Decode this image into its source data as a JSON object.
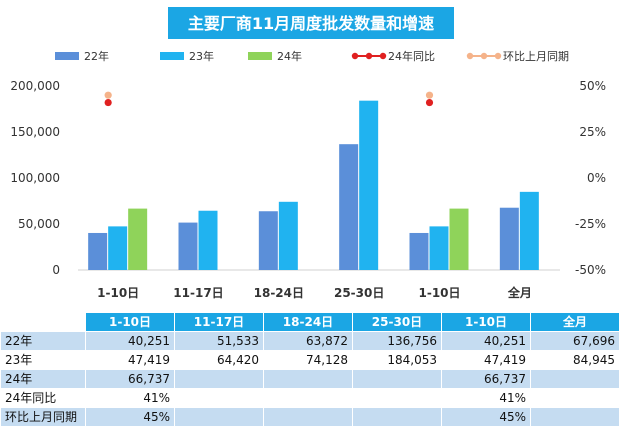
{
  "chart_data": {
    "type": "bar",
    "title": "主要厂商11月周度批发数量和增速",
    "categories": [
      "1-10日",
      "11-17日",
      "18-24日",
      "25-30日",
      "1-10日",
      "全月"
    ],
    "series": [
      {
        "name": "22年",
        "color": "#5b8fd9",
        "values": [
          40251,
          51533,
          63872,
          136756,
          40251,
          67696
        ]
      },
      {
        "name": "23年",
        "color": "#20b3f0",
        "values": [
          47419,
          64420,
          74128,
          184053,
          47419,
          84945
        ]
      },
      {
        "name": "24年",
        "color": "#8fd35a",
        "values": [
          66737,
          null,
          null,
          null,
          66737,
          null
        ]
      },
      {
        "name": "24年同比",
        "type": "line",
        "axis": "right",
        "color": "#e02020",
        "values": [
          41,
          null,
          null,
          null,
          41,
          null
        ]
      },
      {
        "name": "环比上月同期",
        "type": "line",
        "axis": "right",
        "color": "#f5b38a",
        "values": [
          45,
          null,
          null,
          null,
          45,
          null
        ]
      }
    ],
    "ylim": [
      0,
      200000
    ],
    "y_ticks": [
      "0",
      "50,000",
      "100,000",
      "150,000",
      "200,000"
    ],
    "y2lim": [
      -50,
      50
    ],
    "y2_ticks": [
      "-50%",
      "-25%",
      "0%",
      "25%",
      "50%"
    ],
    "legend_position": "top",
    "grid": false
  },
  "table": {
    "headers": [
      "1-10日",
      "11-17日",
      "18-24日",
      "25-30日",
      "1-10日",
      "全月"
    ],
    "rows": [
      {
        "label": "22年",
        "cells": [
          "40,251",
          "51,533",
          "63,872",
          "136,756",
          "40,251",
          "67,696"
        ]
      },
      {
        "label": "23年",
        "cells": [
          "47,419",
          "64,420",
          "74,128",
          "184,053",
          "47,419",
          "84,945"
        ]
      },
      {
        "label": "24年",
        "cells": [
          "66,737",
          "",
          "",
          "",
          "66,737",
          ""
        ]
      },
      {
        "label": "24年同比",
        "cells": [
          "41%",
          "",
          "",
          "",
          "41%",
          ""
        ]
      },
      {
        "label": "环比上月同期",
        "cells": [
          "45%",
          "",
          "",
          "",
          "45%",
          ""
        ]
      }
    ]
  }
}
